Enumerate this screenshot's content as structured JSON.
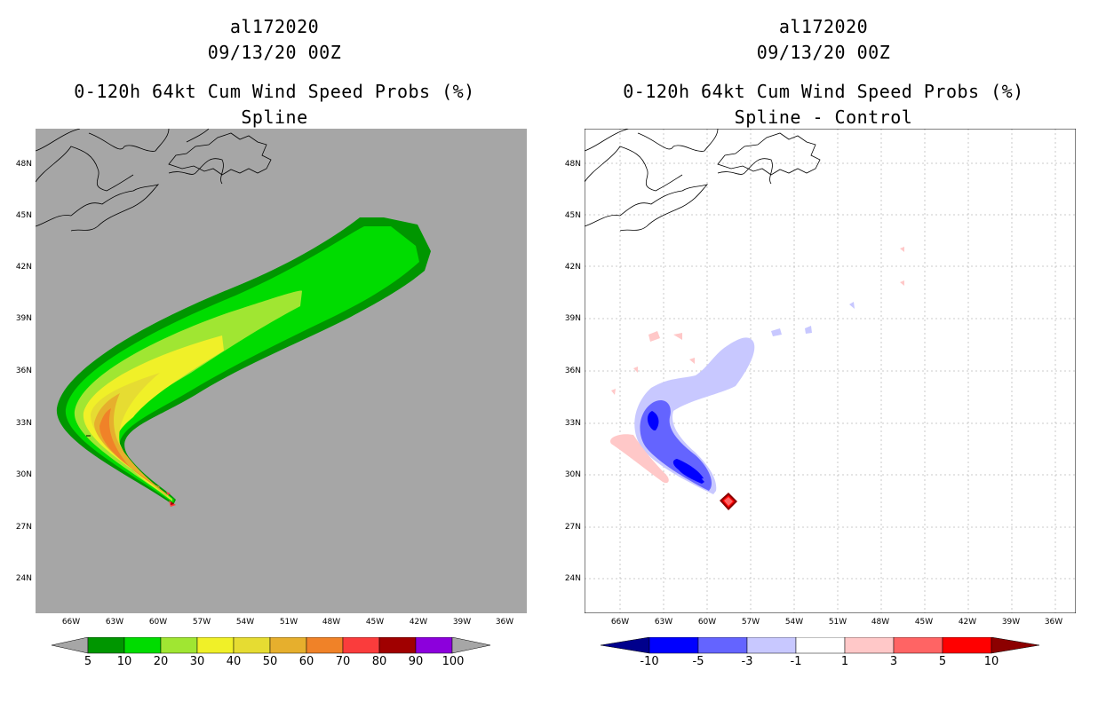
{
  "left": {
    "title_storm": "al172020",
    "title_date": "09/13/20 00Z",
    "title_product": "0-120h 64kt Cum Wind Speed Probs (%)",
    "title_sub": "Spline",
    "legend_labels": [
      "5",
      "10",
      "20",
      "30",
      "40",
      "50",
      "60",
      "70",
      "80",
      "90",
      "100"
    ],
    "legend_colors": [
      "#009600",
      "#00dc00",
      "#a0e632",
      "#f0f028",
      "#e6dc32",
      "#e6af2d",
      "#f08228",
      "#fa3c3c",
      "#a00000",
      "#8c00dc"
    ]
  },
  "right": {
    "title_storm": "al172020",
    "title_date": "09/13/20 00Z",
    "title_product": "0-120h 64kt Cum Wind Speed Probs (%)",
    "title_sub": "Spline - Control",
    "legend_labels": [
      "-10",
      "-5",
      "-3",
      "-1",
      "1",
      "3",
      "5",
      "10"
    ],
    "legend_colors": [
      "#0000ff",
      "#6464ff",
      "#c8c8ff",
      "#ffffff",
      "#ffc8c8",
      "#ff6464",
      "#ff0000"
    ],
    "legend_ends": [
      "#00008c",
      "#8c0000"
    ]
  },
  "axes": {
    "lat_labels": [
      "48N",
      "45N",
      "42N",
      "39N",
      "36N",
      "33N",
      "30N",
      "27N",
      "24N"
    ],
    "lon_labels": [
      "66W",
      "63W",
      "60W",
      "57W",
      "54W",
      "51W",
      "48W",
      "45W",
      "42W",
      "39W",
      "36W"
    ]
  },
  "colors": {
    "ocean_left": "#a6a6a6",
    "grid": "#bbbbbb"
  }
}
